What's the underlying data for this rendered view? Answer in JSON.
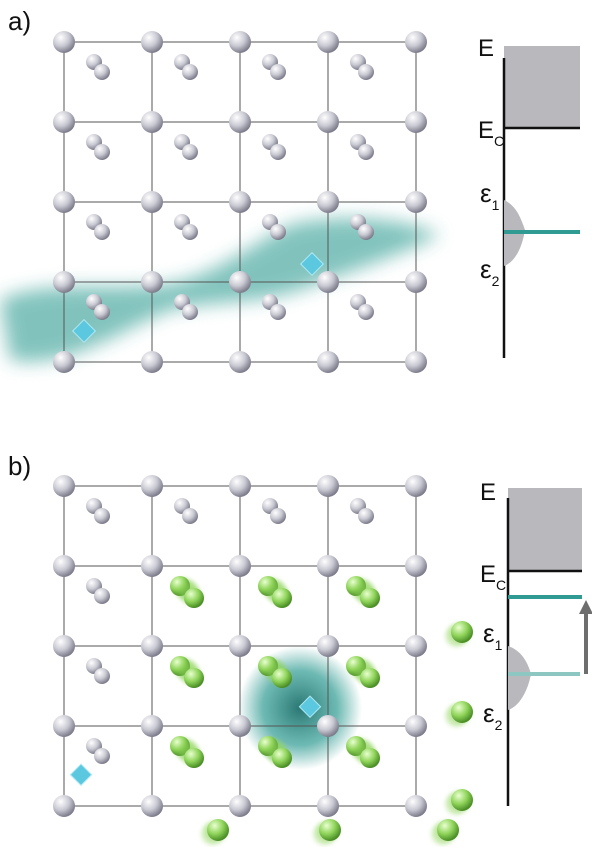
{
  "panels": [
    {
      "id": "a",
      "label": "a)",
      "energy": {
        "axis_label": "E",
        "conduction_label": "E",
        "conduction_sub": "C",
        "level1_label": "ε",
        "level1_sub": "1",
        "level2_label": "ε",
        "level2_sub": "2"
      }
    },
    {
      "id": "b",
      "label": "b)",
      "energy": {
        "axis_label": "E",
        "conduction_label": "E",
        "conduction_sub": "C",
        "level1_label": "ε",
        "level1_sub": "1",
        "level2_label": "ε",
        "level2_sub": "2"
      }
    }
  ],
  "colors": {
    "atom": "#c9c9d3",
    "excited_atom": "#8fd45a",
    "defect": "#5cc8e0",
    "wavefunction": "#2f9b92",
    "level_line": "#2f9b92",
    "level_line_faint": "#8ec7c2",
    "band_fill": "#b8b8bd",
    "arrow": "#6e6e6e",
    "grid": "#555555"
  }
}
